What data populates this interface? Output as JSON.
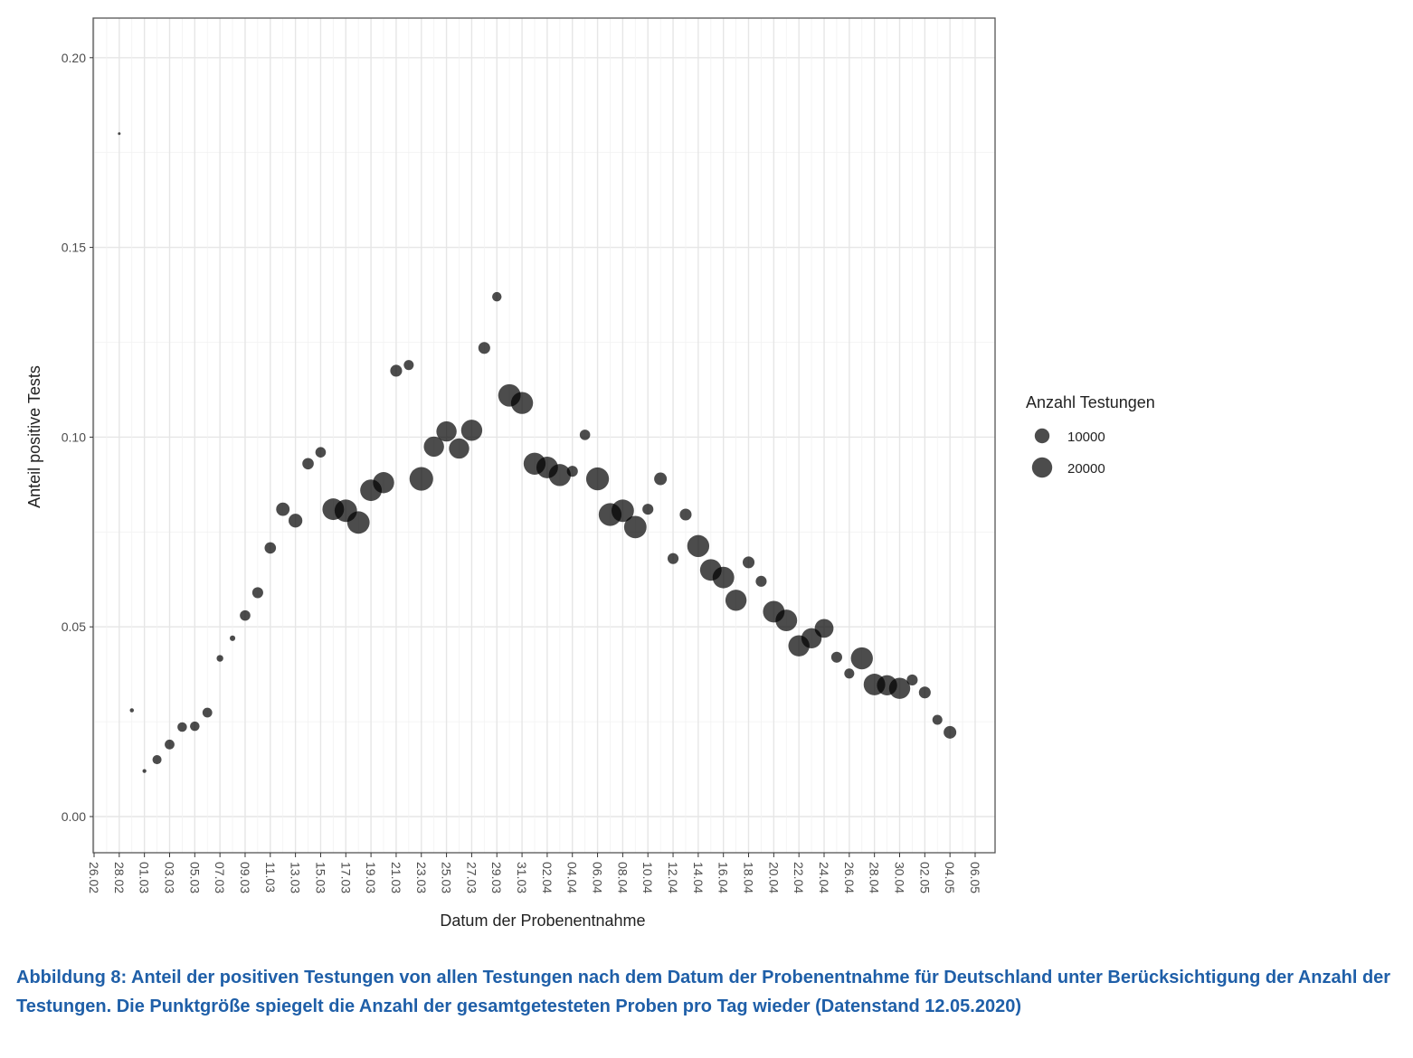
{
  "chart_data": {
    "type": "scatter",
    "title": "",
    "xlabel": "Datum der Probenentnahme",
    "ylabel": "Anteil positive Tests",
    "ylim": [
      -0.01,
      0.21
    ],
    "yticks": [
      0.0,
      0.05,
      0.1,
      0.15,
      0.2
    ],
    "ytick_labels": [
      "0.00",
      "0.05",
      "0.10",
      "0.15",
      "0.20"
    ],
    "xtick_labels": [
      "26.02",
      "28.02",
      "01.03",
      "03.03",
      "05.03",
      "07.03",
      "09.03",
      "11.03",
      "13.03",
      "15.03",
      "17.03",
      "19.03",
      "21.03",
      "23.03",
      "25.03",
      "27.03",
      "29.03",
      "31.03",
      "02.04",
      "04.04",
      "06.04",
      "08.04",
      "10.04",
      "12.04",
      "14.04",
      "16.04",
      "18.04",
      "20.04",
      "22.04",
      "24.04",
      "26.04",
      "28.04",
      "30.04",
      "02.05",
      "04.05",
      "06.05"
    ],
    "grid": true,
    "legend": {
      "title": "Anzahl Testungen",
      "position": "right",
      "entries": [
        {
          "label": "10000",
          "value": 10000
        },
        {
          "label": "20000",
          "value": 20000
        }
      ]
    },
    "point_color": "#000000",
    "size_variable": "Anzahl Testungen",
    "points": [
      [
        "28.02",
        0.18,
        150
      ],
      [
        "29.02",
        0.028,
        400
      ],
      [
        "01.03",
        0.012,
        350
      ],
      [
        "02.03",
        0.015,
        3200
      ],
      [
        "03.03",
        0.019,
        3800
      ],
      [
        "04.03",
        0.0236,
        3600
      ],
      [
        "05.03",
        0.0238,
        3600
      ],
      [
        "06.03",
        0.0274,
        3800
      ],
      [
        "07.03",
        0.0417,
        1500
      ],
      [
        "08.03",
        0.047,
        900
      ],
      [
        "09.03",
        0.053,
        4500
      ],
      [
        "10.03",
        0.059,
        5000
      ],
      [
        "11.03",
        0.0708,
        5500
      ],
      [
        "12.03",
        0.081,
        8000
      ],
      [
        "13.03",
        0.078,
        8500
      ],
      [
        "14.03",
        0.093,
        5500
      ],
      [
        "15.03",
        0.096,
        4500
      ],
      [
        "16.03",
        0.081,
        23000
      ],
      [
        "17.03",
        0.0806,
        25000
      ],
      [
        "18.03",
        0.0775,
        25000
      ],
      [
        "19.03",
        0.086,
        23000
      ],
      [
        "20.03",
        0.088,
        22000
      ],
      [
        "21.03",
        0.1175,
        6000
      ],
      [
        "22.03",
        0.119,
        4000
      ],
      [
        "23.03",
        0.089,
        28000
      ],
      [
        "24.03",
        0.0975,
        20000
      ],
      [
        "25.03",
        0.1015,
        20000
      ],
      [
        "26.03",
        0.097,
        20000
      ],
      [
        "27.03",
        0.1018,
        22000
      ],
      [
        "28.03",
        0.1235,
        6000
      ],
      [
        "29.03",
        0.137,
        3500
      ],
      [
        "30.03",
        0.111,
        25000
      ],
      [
        "31.03",
        0.109,
        24000
      ],
      [
        "01.04",
        0.093,
        24000
      ],
      [
        "02.04",
        0.092,
        23000
      ],
      [
        "03.04",
        0.09,
        24000
      ],
      [
        "04.04",
        0.091,
        5000
      ],
      [
        "05.04",
        0.1006,
        4500
      ],
      [
        "06.04",
        0.089,
        26000
      ],
      [
        "07.04",
        0.0796,
        26000
      ],
      [
        "08.04",
        0.0806,
        25000
      ],
      [
        "09.04",
        0.0763,
        25000
      ],
      [
        "10.04",
        0.081,
        5000
      ],
      [
        "11.04",
        0.089,
        7000
      ],
      [
        "12.04",
        0.068,
        5000
      ],
      [
        "13.04",
        0.0796,
        6000
      ],
      [
        "14.04",
        0.0713,
        24000
      ],
      [
        "15.04",
        0.065,
        23000
      ],
      [
        "16.04",
        0.063,
        23000
      ],
      [
        "17.04",
        0.057,
        22000
      ],
      [
        "18.04",
        0.067,
        6000
      ],
      [
        "19.04",
        0.062,
        5000
      ],
      [
        "20.04",
        0.054,
        23000
      ],
      [
        "21.04",
        0.0517,
        23000
      ],
      [
        "22.04",
        0.045,
        22000
      ],
      [
        "23.04",
        0.047,
        20000
      ],
      [
        "24.04",
        0.0496,
        17000
      ],
      [
        "25.04",
        0.042,
        5000
      ],
      [
        "26.04",
        0.0377,
        4000
      ],
      [
        "27.04",
        0.0417,
        24000
      ],
      [
        "28.04",
        0.0348,
        23000
      ],
      [
        "29.04",
        0.0346,
        20000
      ],
      [
        "30.04",
        0.0338,
        22000
      ],
      [
        "01.05",
        0.036,
        5000
      ],
      [
        "02.05",
        0.0327,
        6000
      ],
      [
        "03.05",
        0.0255,
        4000
      ],
      [
        "04.05",
        0.0222,
        7000
      ]
    ]
  },
  "caption": "Abbildung 8: Anteil der positiven Testungen von allen Testungen nach dem Datum der Probenentnahme für Deutschland unter Berücksichtigung der Anzahl der Testungen. Die Punktgröße spiegelt die Anzahl der gesamtgetesteten Proben pro Tag wieder (Datenstand 12.05.2020)"
}
